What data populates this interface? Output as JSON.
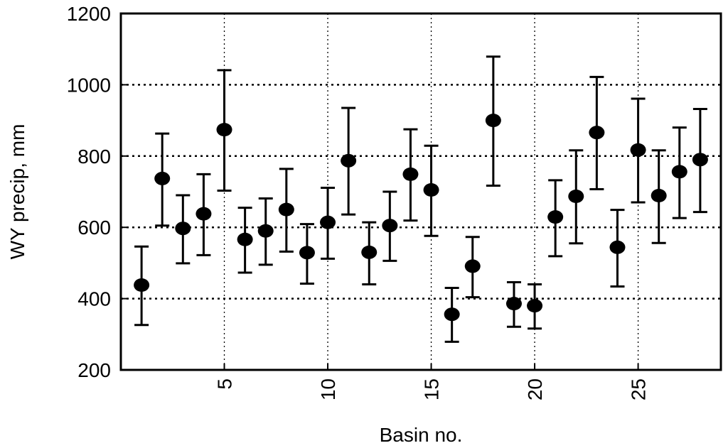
{
  "chart_data": {
    "type": "scatter",
    "xlabel": "Basin no.",
    "ylabel": "WY precip, mm",
    "xlim": [
      0,
      29
    ],
    "ylim": [
      200,
      1200
    ],
    "x_ticks": [
      5,
      10,
      15,
      20,
      25
    ],
    "y_ticks": [
      200,
      400,
      600,
      800,
      1000,
      1200
    ],
    "x_grid": [
      5,
      10,
      15,
      20,
      25
    ],
    "y_grid": [
      400,
      600,
      800,
      1000
    ],
    "grid": true,
    "error_bars": true,
    "colors": {
      "marker": "#000000",
      "grid": "#000000"
    },
    "points": [
      {
        "x": 1,
        "y": 438,
        "low": 326,
        "high": 546
      },
      {
        "x": 2,
        "y": 737,
        "low": 605,
        "high": 863
      },
      {
        "x": 3,
        "y": 597,
        "low": 499,
        "high": 690
      },
      {
        "x": 4,
        "y": 638,
        "low": 522,
        "high": 749
      },
      {
        "x": 5,
        "y": 874,
        "low": 703,
        "high": 1041
      },
      {
        "x": 6,
        "y": 566,
        "low": 473,
        "high": 655
      },
      {
        "x": 7,
        "y": 590,
        "low": 495,
        "high": 681
      },
      {
        "x": 8,
        "y": 650,
        "low": 532,
        "high": 764
      },
      {
        "x": 9,
        "y": 529,
        "low": 442,
        "high": 609
      },
      {
        "x": 10,
        "y": 614,
        "low": 512,
        "high": 711
      },
      {
        "x": 11,
        "y": 787,
        "low": 636,
        "high": 935
      },
      {
        "x": 12,
        "y": 530,
        "low": 440,
        "high": 614
      },
      {
        "x": 13,
        "y": 605,
        "low": 506,
        "high": 700
      },
      {
        "x": 14,
        "y": 749,
        "low": 619,
        "high": 875
      },
      {
        "x": 15,
        "y": 705,
        "low": 576,
        "high": 829
      },
      {
        "x": 16,
        "y": 356,
        "low": 279,
        "high": 430
      },
      {
        "x": 17,
        "y": 491,
        "low": 404,
        "high": 573
      },
      {
        "x": 18,
        "y": 900,
        "low": 717,
        "high": 1079
      },
      {
        "x": 19,
        "y": 386,
        "low": 321,
        "high": 446
      },
      {
        "x": 20,
        "y": 380,
        "low": 316,
        "high": 440
      },
      {
        "x": 21,
        "y": 629,
        "low": 519,
        "high": 732
      },
      {
        "x": 22,
        "y": 687,
        "low": 555,
        "high": 816
      },
      {
        "x": 23,
        "y": 866,
        "low": 707,
        "high": 1022
      },
      {
        "x": 24,
        "y": 544,
        "low": 434,
        "high": 649
      },
      {
        "x": 25,
        "y": 817,
        "low": 670,
        "high": 961
      },
      {
        "x": 26,
        "y": 689,
        "low": 556,
        "high": 816
      },
      {
        "x": 27,
        "y": 756,
        "low": 626,
        "high": 880
      },
      {
        "x": 28,
        "y": 790,
        "low": 643,
        "high": 932
      }
    ]
  }
}
